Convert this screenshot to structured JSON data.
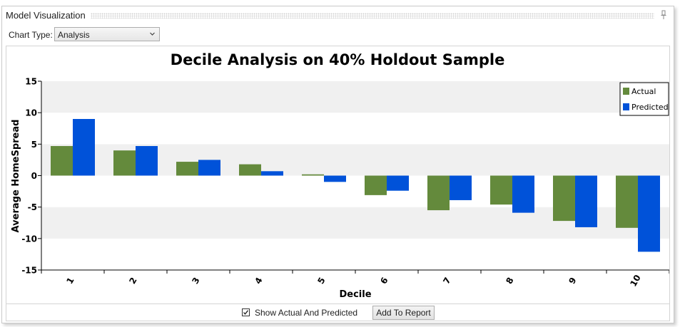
{
  "window": {
    "title": "Model Visualization"
  },
  "toolbar": {
    "chart_type_label": "Chart Type:",
    "chart_type_value": "Analysis"
  },
  "footer": {
    "show_actual_label": "Show Actual And Predicted",
    "show_actual_checked": true,
    "add_report_label": "Add To Report"
  },
  "colors": {
    "actual": "#648a3c",
    "predicted": "#0052d9",
    "band": "#f0f0f0"
  },
  "chart_data": {
    "type": "bar",
    "title": "Decile Analysis on 40% Holdout Sample",
    "xlabel": "Decile",
    "ylabel": "Average HomeSpread",
    "categories": [
      "1",
      "2",
      "3",
      "4",
      "5",
      "6",
      "7",
      "8",
      "9",
      "10"
    ],
    "series": [
      {
        "name": "Actual",
        "values": [
          4.7,
          4.0,
          2.2,
          1.8,
          0.2,
          -3.1,
          -5.5,
          -4.6,
          -7.2,
          -8.3
        ]
      },
      {
        "name": "Predicted",
        "values": [
          9.0,
          4.7,
          2.5,
          0.7,
          -1.0,
          -2.4,
          -3.9,
          -5.9,
          -8.2,
          -12.1
        ]
      }
    ],
    "ylim": [
      -15,
      15
    ],
    "yticks": [
      -15,
      -10,
      -5,
      0,
      5,
      10,
      15
    ],
    "legend": "top-right",
    "grid": "alternating horizontal bands"
  }
}
